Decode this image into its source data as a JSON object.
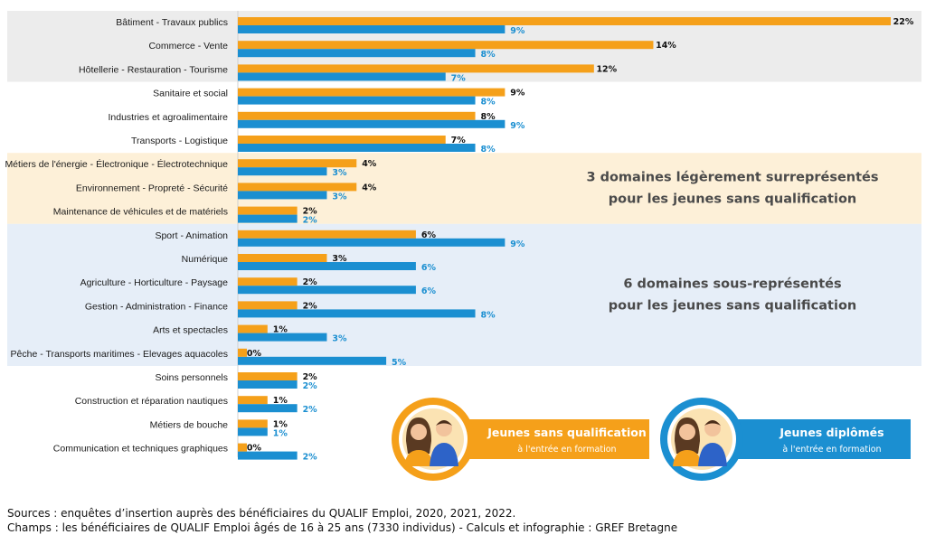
{
  "chart_data": {
    "type": "bar",
    "orientation": "horizontal",
    "unit": "%",
    "xlim": [
      0,
      22
    ],
    "categories": [
      "Bâtiment - Travaux publics",
      "Commerce - Vente",
      "Hôtellerie - Restauration - Tourisme",
      "Sanitaire et social",
      "Industries et agroalimentaire",
      "Transports - Logistique",
      "Métiers de l'énergie - Électronique - Électrotechnique",
      "Environnement - Propreté - Sécurité",
      "Maintenance de véhicules et de matériels",
      "Sport - Animation",
      "Numérique",
      "Agriculture - Horticulture - Paysage",
      "Gestion - Administration - Finance",
      "Arts et spectacles",
      "Pêche - Transports maritimes - Elevages aquacoles",
      "Soins personnels",
      "Construction et réparation nautiques",
      "Métiers de bouche",
      "Communication et techniques graphiques"
    ],
    "series": [
      {
        "name": "Jeunes sans qualification",
        "subtitle": "à l'entrée en formation",
        "color": "#f5a01a",
        "values": [
          22,
          14,
          12,
          9,
          8,
          7,
          4,
          4,
          2,
          6,
          3,
          2,
          2,
          1,
          0,
          2,
          1,
          1,
          0
        ],
        "labels": [
          "22%",
          "14%",
          "12%",
          "9%",
          "8%",
          "7%",
          "4%",
          "4%",
          "2%",
          "6%",
          "3%",
          "2%",
          "2%",
          "1%",
          "0%",
          "2%",
          "1%",
          "1%",
          "0%"
        ]
      },
      {
        "name": "Jeunes diplômés",
        "subtitle": "à l'entrée en formation",
        "color": "#1b8fd1",
        "values": [
          9,
          8,
          7,
          8,
          9,
          8,
          3,
          3,
          2,
          9,
          6,
          6,
          8,
          3,
          5,
          2,
          2,
          1,
          2
        ],
        "labels": [
          "9%",
          "8%",
          "7%",
          "8%",
          "9%",
          "8%",
          "3%",
          "3%",
          "2%",
          "9%",
          "6%",
          "6%",
          "8%",
          "3%",
          "5%",
          "2%",
          "2%",
          "1%",
          "2%"
        ]
      }
    ],
    "bands": [
      {
        "rows": [
          0,
          2
        ],
        "color": "#ececec",
        "text": []
      },
      {
        "rows": [
          6,
          8
        ],
        "color": "#fdf0d8",
        "text": [
          "3 domaines légèrement surreprésentés",
          "pour les jeunes sans qualification"
        ]
      },
      {
        "rows": [
          9,
          14
        ],
        "color": "#e6eef8",
        "text": [
          "6 domaines sous-représentés",
          "pour les jeunes sans qualification"
        ]
      }
    ],
    "colors": {
      "orange": "#f5a01a",
      "blue": "#1b8fd1",
      "avatar_bg": "#fbe3b3"
    }
  },
  "sources": {
    "line1": "Sources : enquêtes d’insertion auprès des bénéficiaires du QUALIF Emploi, 2020, 2021, 2022.",
    "line2": "Champs : les bénéficiaires de QUALIF Emploi âgés de 16 à 25 ans (7330 individus) - Calculs et infographie : GREF Bretagne"
  }
}
